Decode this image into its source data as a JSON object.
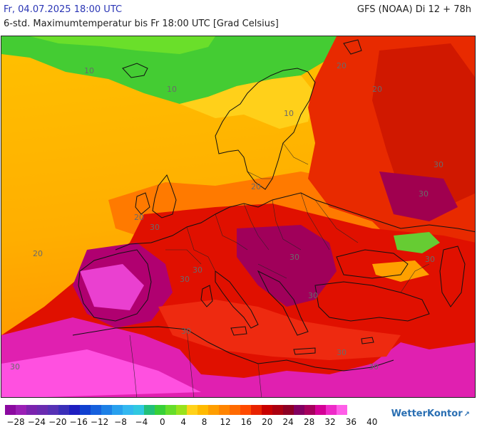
{
  "header": {
    "date": "Fr, 04.07.2025 18:00 UTC",
    "model": "GFS (NOAA) Di 12 + 78h",
    "description": "6-std. Maximumtemperatur bis Fr 18:00 UTC [Grad Celsius]"
  },
  "map": {
    "contour_labels": [
      "10",
      "10",
      "10",
      "20",
      "20",
      "20",
      "20",
      "20",
      "30",
      "30",
      "30",
      "30",
      "30",
      "30",
      "30",
      "30",
      "30",
      "30",
      "30",
      "30"
    ]
  },
  "legend": {
    "colors": [
      "#8b0aa0",
      "#9a1fb5",
      "#7a23ae",
      "#6a2bb0",
      "#5631b5",
      "#3a2eb8",
      "#1e1ec0",
      "#1040d0",
      "#1660dd",
      "#1d80e6",
      "#28a0ee",
      "#33b8f0",
      "#30c8e0",
      "#22c07a",
      "#38d038",
      "#66dd2a",
      "#99e21c",
      "#ffd21a",
      "#ffba00",
      "#ff9e00",
      "#ff8400",
      "#ff6a00",
      "#ff4a00",
      "#e82200",
      "#c80000",
      "#ab0010",
      "#8d0024",
      "#820060",
      "#a5005c",
      "#d40096",
      "#ee2ac8",
      "#ff5ee8"
    ],
    "ticks": [
      "−28",
      "−24",
      "−20",
      "−16",
      "−12",
      "−8",
      "−4",
      "0",
      "4",
      "8",
      "12",
      "16",
      "20",
      "24",
      "28",
      "32",
      "36",
      "40"
    ]
  },
  "brand": {
    "name": "WetterKontor",
    "mark": "↗"
  }
}
